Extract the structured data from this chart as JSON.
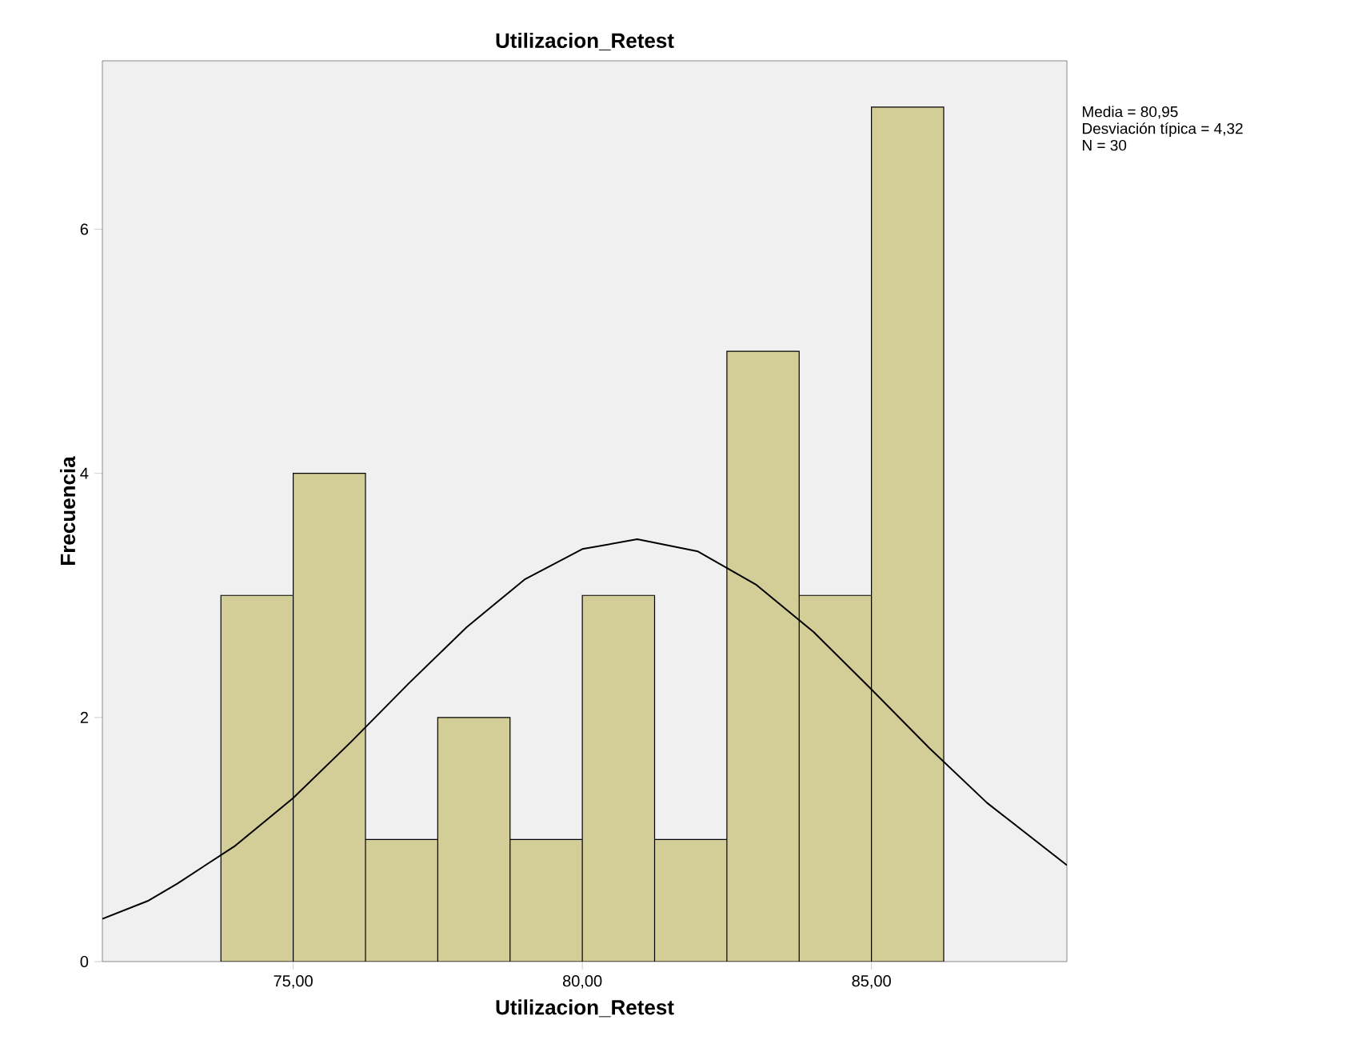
{
  "chart_data": {
    "type": "histogram",
    "title": "Utilizacion_Retest",
    "xlabel": "Utilizacion_Retest",
    "ylabel": "Frecuencia",
    "bins": [
      73.75,
      75.0,
      76.25,
      77.5,
      78.75,
      80.0,
      81.25,
      82.5,
      83.75,
      85.0,
      86.25
    ],
    "values": [
      3,
      4,
      1,
      2,
      1,
      3,
      1,
      5,
      3,
      7
    ],
    "color": "#d3ce97",
    "series": [
      {
        "type": "line",
        "color": "#000000",
        "x": [
          71.7,
          72.5,
          73,
          74,
          75,
          76,
          77,
          78,
          79,
          80,
          80.95,
          82,
          83,
          84,
          85,
          86,
          87,
          88.38
        ],
        "values": [
          0.35,
          0.5,
          0.64,
          0.95,
          1.34,
          1.8,
          2.28,
          2.74,
          3.13,
          3.38,
          3.46,
          3.36,
          3.09,
          2.7,
          2.23,
          1.75,
          1.3,
          0.79
        ]
      }
    ],
    "xlim": [
      71.7,
      88.38
    ],
    "ylim": [
      0,
      7.38
    ],
    "xticks": [
      {
        "value": 75,
        "label": "75,00"
      },
      {
        "value": 80,
        "label": "80,00"
      },
      {
        "value": 85,
        "label": "85,00"
      }
    ],
    "yticks": [
      0,
      2,
      4,
      6
    ],
    "annotations": [
      "Media = 80,95",
      "Desviación típica = 4,32",
      "N = 30"
    ],
    "marker": "none",
    "line_style": "solid"
  }
}
